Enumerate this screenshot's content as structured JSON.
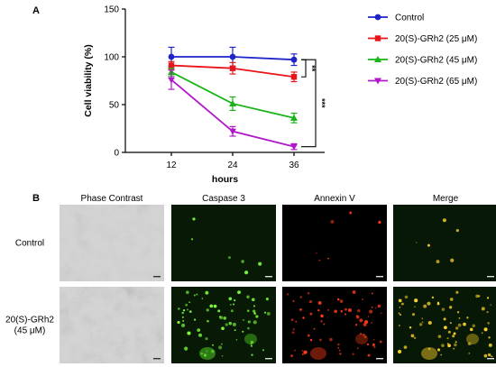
{
  "panels": {
    "a_letter": "A",
    "b_letter": "B"
  },
  "chart_data": {
    "type": "line",
    "title": "",
    "xlabel": "hours",
    "ylabel": "Cell viability (%)",
    "x": [
      12,
      24,
      36
    ],
    "xticks": [
      "12",
      "24",
      "36"
    ],
    "yticks": [
      "0",
      "50",
      "100",
      "150"
    ],
    "ylim": [
      0,
      150
    ],
    "xlim": [
      3,
      42
    ],
    "grid": false,
    "legend_position": "top-right",
    "series": [
      {
        "name": "Control",
        "color": "#1f24c9",
        "marker": "circle",
        "values": [
          100,
          100,
          97
        ],
        "errors": [
          10,
          10,
          6
        ]
      },
      {
        "name": "20(S)-GRh2 (25 μM)",
        "color": "#e8141b",
        "marker": "square",
        "values": [
          91,
          88,
          79
        ],
        "errors": [
          4,
          6,
          5
        ]
      },
      {
        "name": "20(S)-GRh2 (45 μM)",
        "color": "#18b418",
        "marker": "triangle-up",
        "values": [
          84,
          51,
          36
        ],
        "errors": [
          4,
          7,
          5
        ]
      },
      {
        "name": "20(S)-GRh2 (65 μM)",
        "color": "#b019c8",
        "marker": "triangle-down",
        "values": [
          76,
          22,
          6
        ],
        "errors": [
          10,
          5,
          3
        ]
      }
    ],
    "significance": [
      {
        "label": "**",
        "from": 97,
        "to": 79
      },
      {
        "label": "***",
        "from": 97,
        "to": 6
      }
    ]
  },
  "microscopy": {
    "columns": [
      "Phase Contrast",
      "Caspase 3",
      "Annexin V",
      "Merge"
    ],
    "rows": [
      {
        "label_lines": [
          "Control"
        ]
      },
      {
        "label_lines": [
          "20(S)-GRh2",
          "(45 μM)"
        ]
      }
    ]
  }
}
